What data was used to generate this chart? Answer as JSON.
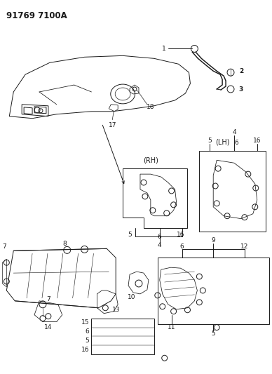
{
  "title": "91769 7100A",
  "bg_color": "#ffffff",
  "line_color": "#1a1a1a",
  "title_fontsize": 8.5,
  "label_fontsize": 6.5,
  "figsize": [
    3.88,
    5.33
  ],
  "dpi": 100
}
